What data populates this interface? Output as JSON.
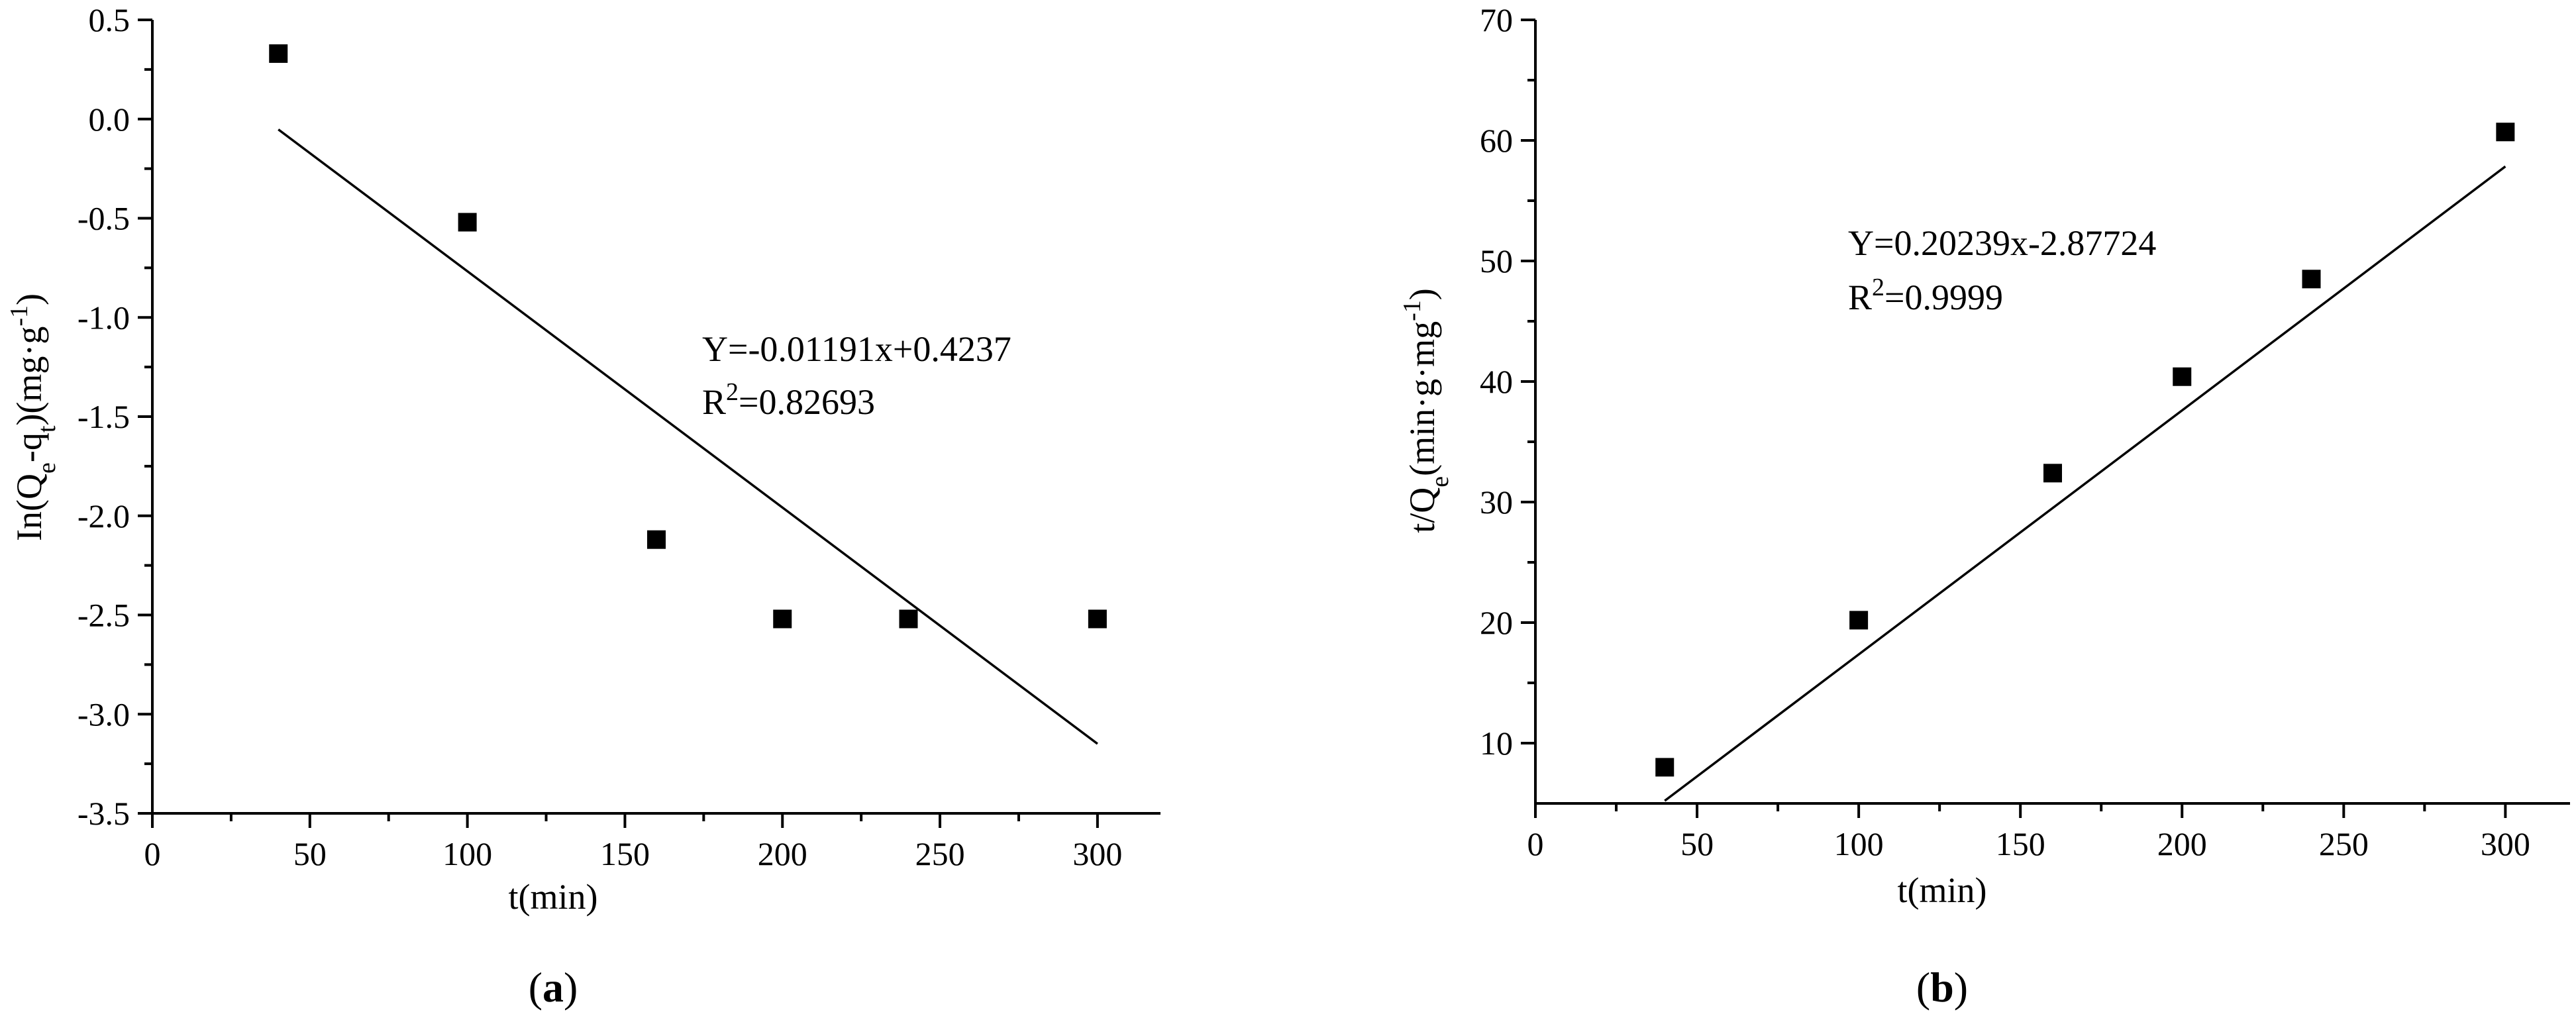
{
  "chart_data": [
    {
      "type": "scatter",
      "panel_label": "(a)",
      "panel_letter": "a",
      "xlabel": "t(min)",
      "ylabel": {
        "pre": "In(Q",
        "sub1": "e",
        "mid": "-q",
        "sub2": "t",
        "post": ")(mg·g",
        "sup": "-1",
        "end": ")"
      },
      "xlim": [
        0,
        320
      ],
      "ylim": [
        -3.5,
        0.5
      ],
      "xticks": [
        0,
        50,
        100,
        150,
        200,
        250,
        300
      ],
      "yticks": [
        -3.5,
        -3.0,
        -2.5,
        -2.0,
        -1.5,
        -1.0,
        -0.5,
        0.0,
        0.5
      ],
      "ytick_decimals": 1,
      "x": [
        40,
        100,
        160,
        200,
        240,
        300
      ],
      "y": [
        0.33,
        -0.52,
        -2.12,
        -2.52,
        -2.52,
        -2.52
      ],
      "fit": {
        "slope": -0.01191,
        "intercept": 0.4237,
        "x_range": [
          40,
          300
        ]
      },
      "equation": "Y=-0.01191x+0.4237",
      "r2": {
        "prefix": "R",
        "sup": "2",
        "value": "=0.82693"
      },
      "grid": false,
      "marker": "square"
    },
    {
      "type": "scatter",
      "panel_label": "(b)",
      "panel_letter": "b",
      "xlabel": "t(min)",
      "ylabel": {
        "pre": "t/Q",
        "sub1": "e",
        "mid": "(min·g·mg",
        "sup": "-1",
        "end": ")"
      },
      "xlim": [
        0,
        320
      ],
      "ylim": [
        5,
        70
      ],
      "xticks": [
        0,
        50,
        100,
        150,
        200,
        250,
        300
      ],
      "yticks": [
        10,
        20,
        30,
        40,
        50,
        60,
        70
      ],
      "ytick_decimals": 0,
      "x": [
        40,
        100,
        160,
        200,
        240,
        300
      ],
      "y": [
        8.0,
        20.2,
        32.4,
        40.4,
        48.5,
        60.7
      ],
      "fit": {
        "slope": 0.20239,
        "intercept": -2.87724,
        "x_range": [
          40,
          300
        ]
      },
      "equation": "Y=0.20239x-2.87724",
      "r2": {
        "prefix": "R",
        "sup": "2",
        "value": "=0.9999"
      },
      "grid": false,
      "marker": "square"
    }
  ]
}
